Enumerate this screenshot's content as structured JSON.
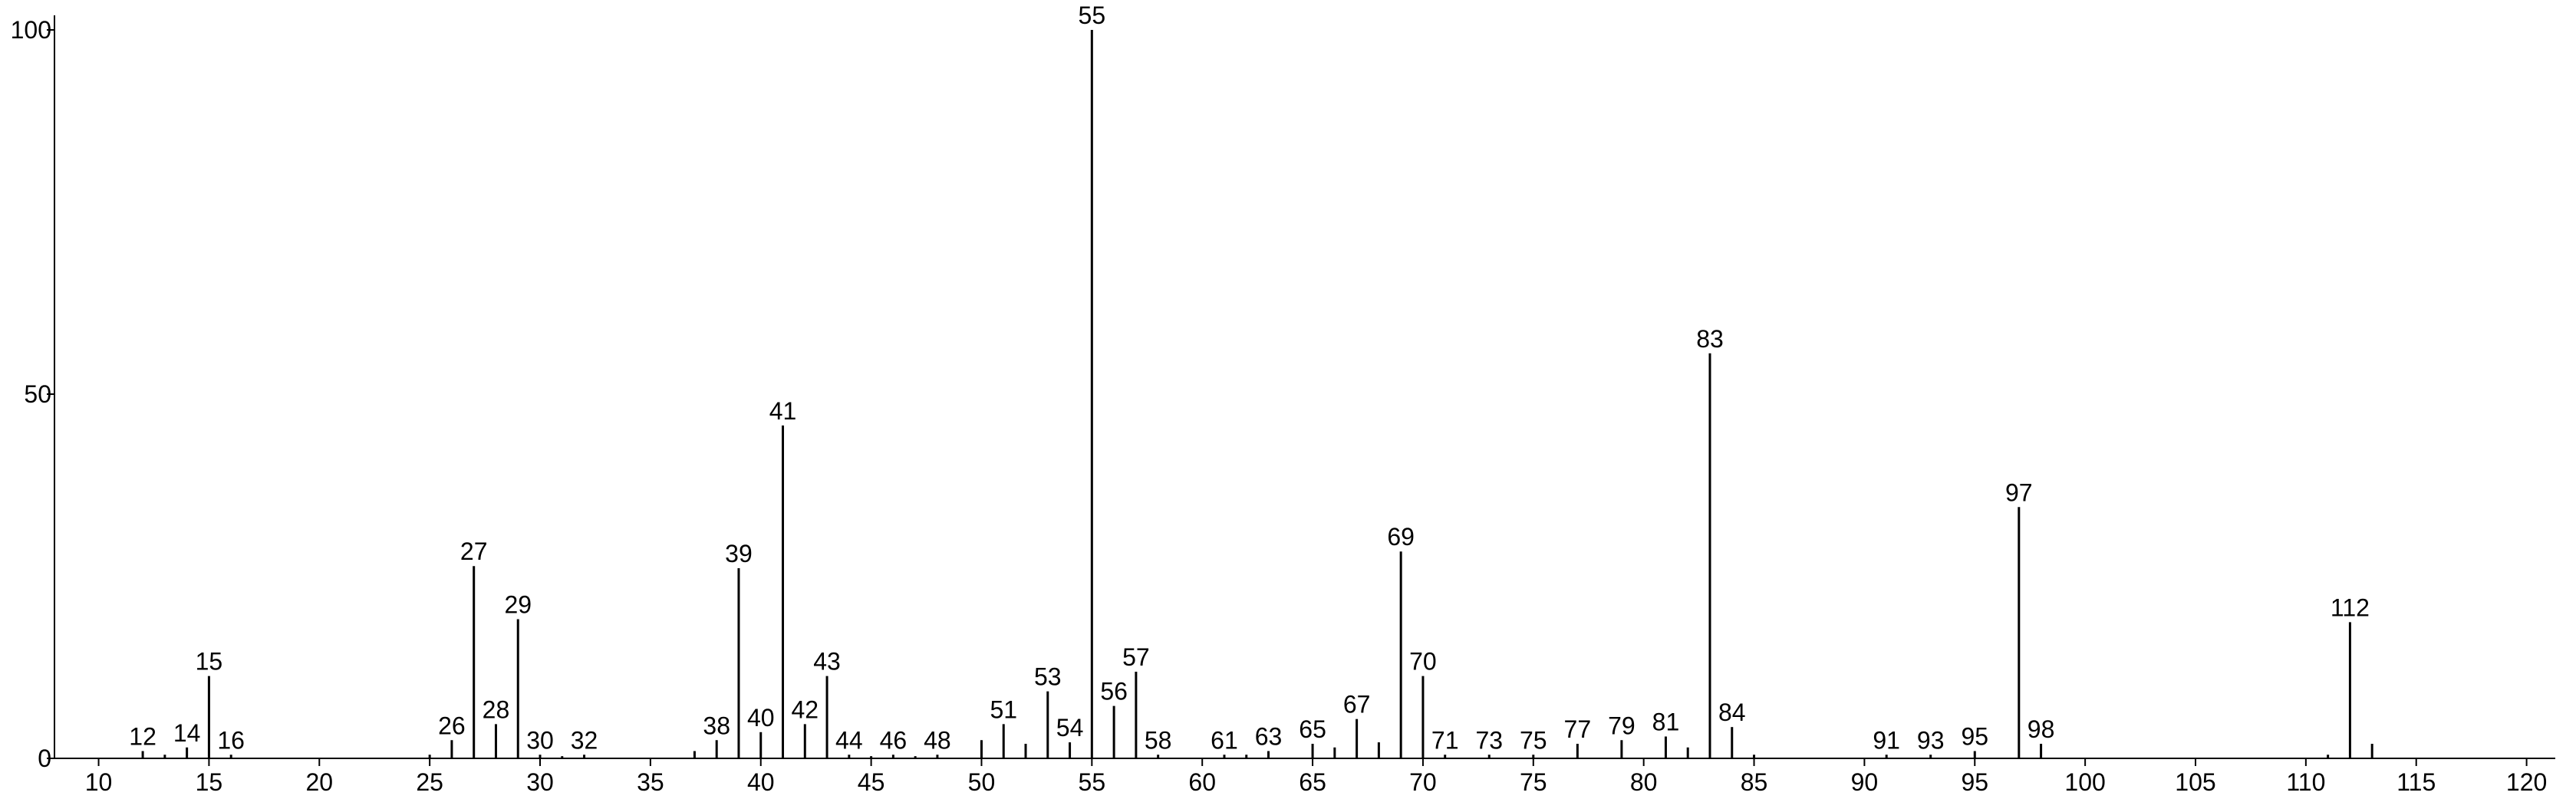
{
  "chart_data": {
    "type": "stem",
    "x": [
      12,
      13,
      14,
      15,
      16,
      25,
      26,
      27,
      28,
      29,
      30,
      31,
      32,
      37,
      38,
      39,
      40,
      41,
      42,
      43,
      44,
      45,
      46,
      47,
      48,
      50,
      51,
      52,
      53,
      54,
      55,
      56,
      57,
      58,
      61,
      62,
      63,
      65,
      66,
      67,
      68,
      69,
      70,
      71,
      73,
      75,
      77,
      79,
      81,
      82,
      83,
      84,
      85,
      91,
      93,
      95,
      97,
      98,
      111,
      112,
      113
    ],
    "values": [
      1,
      0.5,
      1.5,
      11.3,
      0.5,
      0.5,
      2.5,
      26.4,
      4.7,
      19.1,
      0.5,
      0.3,
      0.5,
      1,
      2.5,
      26.1,
      3.6,
      45.7,
      4.7,
      11.3,
      0.5,
      0.3,
      0.5,
      0.3,
      0.5,
      2.5,
      4.7,
      2,
      9.2,
      2.2,
      100,
      7.2,
      11.9,
      0.5,
      0.5,
      0.5,
      1,
      2,
      1.5,
      5.4,
      2.2,
      28.4,
      11.3,
      0.5,
      0.5,
      0.5,
      2,
      2.5,
      3,
      1.5,
      55.6,
      4.3,
      0.5,
      0.5,
      0.5,
      1,
      34.5,
      2,
      0.5,
      18.7,
      2
    ],
    "labels": [
      12,
      null,
      14,
      15,
      16,
      null,
      26,
      27,
      28,
      29,
      30,
      null,
      32,
      null,
      38,
      39,
      40,
      41,
      42,
      43,
      44,
      null,
      46,
      null,
      48,
      null,
      51,
      null,
      53,
      54,
      55,
      56,
      57,
      58,
      61,
      null,
      63,
      65,
      null,
      67,
      null,
      69,
      70,
      71,
      73,
      75,
      77,
      79,
      81,
      null,
      83,
      84,
      null,
      91,
      93,
      95,
      97,
      98,
      null,
      112,
      null
    ],
    "color": "#000000",
    "xlim": [
      8,
      121.3
    ],
    "xticks": [
      10,
      15,
      20,
      25,
      30,
      35,
      40,
      45,
      50,
      55,
      60,
      65,
      70,
      75,
      80,
      85,
      90,
      95,
      100,
      105,
      110,
      115,
      120
    ],
    "ylim": [
      0,
      100
    ],
    "yticks": [
      0,
      50,
      100
    ]
  }
}
